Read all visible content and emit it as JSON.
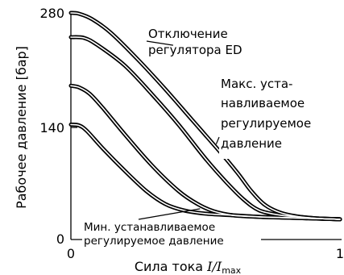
{
  "chart_data": {
    "type": "line",
    "xlabel_text": "Сила тока ",
    "xlabel_var": "I/I",
    "xlabel_sub": "max",
    "ylabel": "Рабочее давление [бар]",
    "xlim": [
      0,
      1
    ],
    "ylim": [
      0,
      280
    ],
    "x_ticks": [
      {
        "value": 0,
        "label": "0"
      },
      {
        "value": 1,
        "label": "1"
      }
    ],
    "y_ticks": [
      {
        "value": 0,
        "label": "0"
      },
      {
        "value": 140,
        "label": "140"
      },
      {
        "value": 280,
        "label": "280"
      }
    ],
    "series": [
      {
        "x": [
          0,
          0.03,
          0.08,
          0.15,
          0.25,
          0.35,
          0.45,
          0.55,
          0.62,
          0.67,
          0.72,
          0.78,
          0.85,
          0.92,
          1.0
        ],
        "y": [
          280,
          279,
          272,
          255,
          222,
          186,
          148,
          110,
          82,
          60,
          43,
          33,
          28,
          26,
          25
        ]
      },
      {
        "x": [
          0,
          0.05,
          0.1,
          0.2,
          0.3,
          0.4,
          0.5,
          0.58,
          0.64,
          0.7,
          0.78,
          0.85,
          0.92,
          1.0
        ],
        "y": [
          250,
          249,
          240,
          215,
          180,
          142,
          100,
          70,
          50,
          36,
          30,
          28,
          26,
          25
        ]
      },
      {
        "x": [
          0,
          0.03,
          0.07,
          0.12,
          0.2,
          0.3,
          0.4,
          0.47,
          0.53,
          0.6,
          0.7,
          0.8,
          0.9,
          1.0
        ],
        "y": [
          190,
          188,
          180,
          162,
          130,
          92,
          60,
          44,
          35,
          30,
          28,
          27,
          26,
          25
        ]
      },
      {
        "x": [
          0,
          0.03,
          0.06,
          0.12,
          0.2,
          0.28,
          0.35,
          0.42,
          0.5,
          0.6,
          0.7,
          0.8,
          0.9,
          1.0
        ],
        "y": [
          142,
          141,
          134,
          112,
          85,
          60,
          44,
          36,
          32,
          30,
          28,
          27,
          26,
          25
        ]
      }
    ],
    "annotations": [
      {
        "lines": [
          "Отключение",
          "регулятора ED"
        ],
        "target": {
          "x": 0.38,
          "y": 240
        }
      },
      {
        "lines": [
          "Макс. уста-",
          "навливаемое",
          "регулируемое",
          "давление"
        ],
        "target": {
          "x": 0.54,
          "y": 118
        }
      },
      {
        "lines": [
          "Мин. устанавливаемое",
          "регулируемое давление"
        ],
        "target": {
          "x": 0.48,
          "y": 38
        }
      }
    ]
  }
}
